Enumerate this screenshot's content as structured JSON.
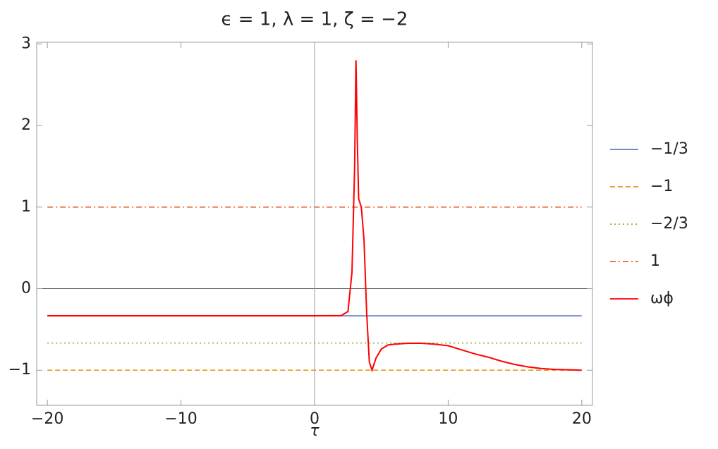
{
  "chart_data": {
    "type": "line",
    "title": "ϵ = 1, λ = 1, ζ = −2",
    "xlabel": "τ",
    "xlim": [
      -20.8,
      20.8
    ],
    "ylim": [
      -1.43,
      3.02
    ],
    "xticks": [
      {
        "value": -20,
        "label": "−20"
      },
      {
        "value": -10,
        "label": "−10"
      },
      0,
      10,
      20
    ],
    "yticks": [
      {
        "value": -1,
        "label": "−1"
      },
      0,
      1,
      2,
      3
    ],
    "grid": false,
    "legend": "right",
    "series": [
      {
        "name": "−1/3",
        "color": "#5e81b5",
        "style": "solid",
        "x": [
          -20,
          20
        ],
        "values": [
          -0.3333,
          -0.3333
        ]
      },
      {
        "name": "−1",
        "color": "#e19c24",
        "style": "dashed",
        "x": [
          -20,
          20
        ],
        "values": [
          -1,
          -1
        ]
      },
      {
        "name": "−2/3",
        "color": "#8fb032",
        "style": "dotted",
        "x": [
          -20,
          20
        ],
        "values": [
          -0.6667,
          -0.6667
        ]
      },
      {
        "name": "1",
        "color": "#eb6235",
        "style": "dashdot",
        "x": [
          -20,
          20
        ],
        "values": [
          1,
          1
        ]
      },
      {
        "name": "ωϕ",
        "color": "#ff0000",
        "style": "solid",
        "x": [
          -20,
          -10,
          0,
          2,
          2.5,
          2.8,
          3.0,
          3.1,
          3.2,
          3.3,
          3.5,
          3.7,
          3.9,
          4.1,
          4.3,
          4.6,
          5,
          5.5,
          6,
          7,
          8,
          9,
          10,
          11,
          12,
          13,
          14,
          15,
          16,
          17,
          18,
          19,
          20
        ],
        "values": [
          -0.333,
          -0.333,
          -0.333,
          -0.33,
          -0.28,
          0.2,
          1.5,
          2.8,
          1.8,
          1.1,
          1.0,
          0.6,
          -0.3,
          -0.9,
          -1.0,
          -0.85,
          -0.74,
          -0.69,
          -0.68,
          -0.67,
          -0.67,
          -0.68,
          -0.7,
          -0.75,
          -0.8,
          -0.84,
          -0.89,
          -0.93,
          -0.96,
          -0.98,
          -0.99,
          -0.995,
          -1.0
        ]
      }
    ]
  }
}
